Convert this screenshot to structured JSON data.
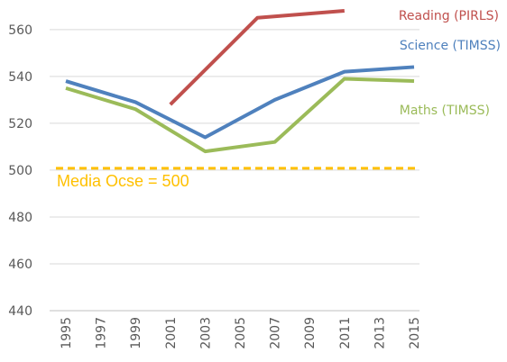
{
  "chart_data": {
    "type": "line",
    "x": [
      1995,
      1997,
      1999,
      2001,
      2003,
      2005,
      2007,
      2009,
      2011,
      2013,
      2015
    ],
    "x_tick_labels": [
      "1995",
      "1997",
      "1999",
      "2001",
      "2003",
      "2005",
      "2007",
      "2009",
      "2011",
      "2013",
      "2015"
    ],
    "y_ticks": [
      440,
      460,
      480,
      500,
      520,
      540,
      560
    ],
    "ylim": [
      440,
      568
    ],
    "grid": "horizontal",
    "series": [
      {
        "name": "Reading (PIRLS)",
        "color": "#c0504d",
        "points": [
          [
            2001,
            528
          ],
          [
            2006,
            565
          ],
          [
            2011,
            568
          ]
        ]
      },
      {
        "name": "Science (TIMSS)",
        "color": "#4f81bd",
        "points": [
          [
            1995,
            538
          ],
          [
            1999,
            529
          ],
          [
            2003,
            514
          ],
          [
            2007,
            530
          ],
          [
            2011,
            542
          ],
          [
            2015,
            544
          ]
        ]
      },
      {
        "name": "Maths (TIMSS)",
        "color": "#9bbb59",
        "points": [
          [
            1995,
            535
          ],
          [
            1999,
            526
          ],
          [
            2003,
            508
          ],
          [
            2007,
            512
          ],
          [
            2011,
            539
          ],
          [
            2015,
            538
          ]
        ]
      }
    ],
    "reference_line": {
      "label": "Media Ocse = 500",
      "value": 500,
      "color": "#ffc000"
    }
  }
}
